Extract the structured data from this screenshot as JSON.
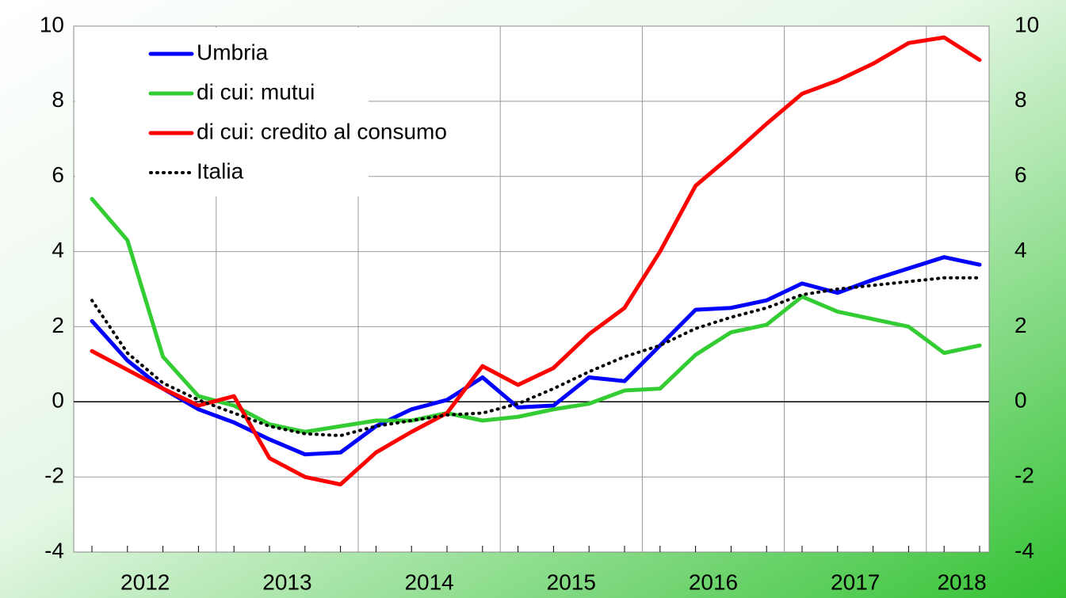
{
  "chart_data": {
    "type": "line",
    "categories": [
      "2012",
      null,
      null,
      null,
      "2013",
      null,
      null,
      null,
      "2014",
      null,
      null,
      null,
      "2015",
      null,
      null,
      null,
      "2016",
      null,
      null,
      null,
      "2017",
      null,
      null,
      null,
      "2018",
      null
    ],
    "series": [
      {
        "name": "Umbria",
        "color": "#0000ff",
        "style": "solid",
        "values": [
          2.15,
          1.1,
          0.35,
          -0.2,
          -0.55,
          -1.0,
          -1.4,
          -1.35,
          -0.65,
          -0.2,
          0.05,
          0.65,
          -0.15,
          -0.1,
          0.65,
          0.55,
          1.5,
          2.45,
          2.5,
          2.7,
          3.15,
          2.9,
          3.25,
          3.55,
          3.85,
          3.65
        ]
      },
      {
        "name": "di cui: mutui",
        "color": "#33cc33",
        "style": "solid",
        "values": [
          5.4,
          4.3,
          1.2,
          0.15,
          -0.1,
          -0.6,
          -0.8,
          -0.65,
          -0.5,
          -0.5,
          -0.3,
          -0.5,
          -0.4,
          -0.2,
          -0.05,
          0.3,
          0.35,
          1.25,
          1.85,
          2.05,
          2.8,
          2.4,
          2.2,
          2.0,
          1.3,
          1.5
        ]
      },
      {
        "name": "di cui: credito al consumo",
        "color": "#ff0000",
        "style": "solid",
        "values": [
          1.35,
          0.85,
          0.35,
          -0.1,
          0.15,
          -1.5,
          -2.0,
          -2.2,
          -1.35,
          -0.8,
          -0.3,
          0.95,
          0.45,
          0.9,
          1.8,
          2.5,
          4.0,
          5.75,
          6.55,
          7.4,
          8.2,
          8.55,
          9.0,
          9.55,
          9.7,
          9.1
        ]
      },
      {
        "name": "Italia",
        "color": "#000000",
        "style": "dotted",
        "values": [
          2.7,
          1.3,
          0.5,
          0.05,
          -0.3,
          -0.65,
          -0.85,
          -0.9,
          -0.65,
          -0.5,
          -0.35,
          -0.3,
          -0.05,
          0.35,
          0.8,
          1.2,
          1.5,
          1.95,
          2.25,
          2.5,
          2.85,
          3.0,
          3.1,
          3.2,
          3.3,
          3.3
        ]
      }
    ],
    "ylim": [
      -4,
      10
    ],
    "yticks": [
      -4,
      -2,
      0,
      2,
      4,
      6,
      8,
      10
    ],
    "y2lim": [
      -4,
      10
    ],
    "y2ticks": [
      -4,
      -2,
      0,
      2,
      4,
      6,
      8,
      10
    ],
    "grid": true,
    "legend": "upper left"
  }
}
